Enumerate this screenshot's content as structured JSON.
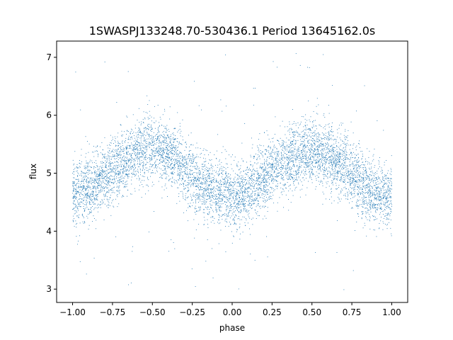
{
  "chart_data": {
    "type": "scatter",
    "title": "1SWASPJ133248.70-530436.1 Period 13645162.0s",
    "xlabel": "phase",
    "ylabel": "flux",
    "xlim": [
      -1.1,
      1.1
    ],
    "ylim": [
      2.77,
      7.28
    ],
    "xticks": [
      -1.0,
      -0.75,
      -0.5,
      -0.25,
      0.0,
      0.25,
      0.5,
      0.75,
      1.0
    ],
    "xtick_labels": [
      "−1.00",
      "−0.75",
      "−0.50",
      "−0.25",
      "0.00",
      "0.25",
      "0.50",
      "0.75",
      "1.00"
    ],
    "yticks": [
      3,
      4,
      5,
      6,
      7
    ],
    "ytick_labels": [
      "3",
      "4",
      "5",
      "6",
      "7"
    ],
    "grid": false,
    "marker_color": "#1f77b4",
    "phase_range": [
      -1.0,
      1.0
    ],
    "curve": {
      "phase": [
        -1.0,
        -0.9,
        -0.8,
        -0.7,
        -0.6,
        -0.5,
        -0.4,
        -0.3,
        -0.2,
        -0.1,
        0.0,
        0.1,
        0.2,
        0.3,
        0.4,
        0.5,
        0.6,
        0.7,
        0.8,
        0.9,
        1.0
      ],
      "flux": [
        4.65,
        4.75,
        4.95,
        5.15,
        5.35,
        5.45,
        5.35,
        5.1,
        4.8,
        4.65,
        4.6,
        4.7,
        4.95,
        5.15,
        5.3,
        5.35,
        5.3,
        5.1,
        4.85,
        4.65,
        4.6
      ]
    },
    "scatter_sigma": 0.28,
    "outlier_range": [
      2.98,
      7.08
    ]
  }
}
